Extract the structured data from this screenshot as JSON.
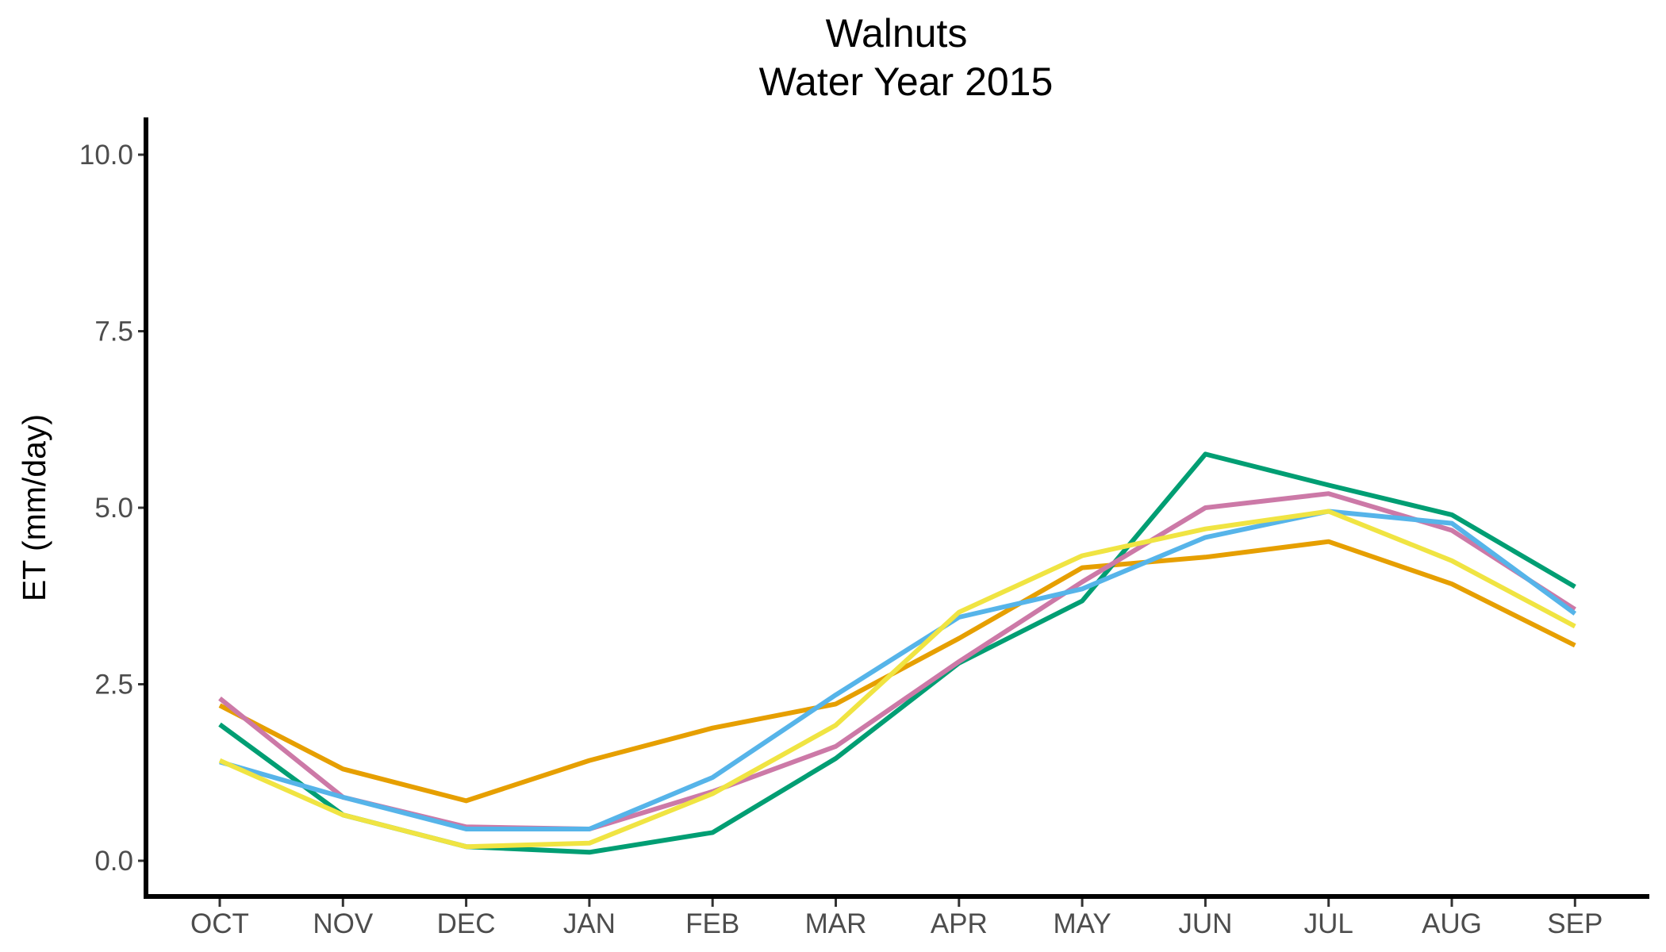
{
  "chart_data": {
    "type": "line",
    "title_lines": [
      "Walnuts",
      "Water Year 2015"
    ],
    "xlabel": "",
    "ylabel": "ET (mm/day)",
    "categories": [
      "OCT",
      "NOV",
      "DEC",
      "JAN",
      "FEB",
      "MAR",
      "APR",
      "MAY",
      "JUN",
      "JUL",
      "AUG",
      "SEP"
    ],
    "ylim": [
      -0.5,
      10.5
    ],
    "yticks": [
      0.0,
      2.5,
      5.0,
      7.5,
      10.0
    ],
    "ytick_labels": [
      "0.0",
      "2.5",
      "5.0",
      "7.5",
      "10.0"
    ],
    "grid": false,
    "legend": "none",
    "series": [
      {
        "color": "#E69F00",
        "values": [
          2.2,
          1.3,
          0.85,
          1.42,
          1.88,
          2.22,
          3.15,
          4.15,
          4.3,
          4.52,
          3.92,
          3.05
        ]
      },
      {
        "color": "#009E73",
        "values": [
          1.93,
          0.65,
          0.2,
          0.12,
          0.4,
          1.45,
          2.8,
          3.68,
          5.76,
          5.32,
          4.9,
          3.88
        ]
      },
      {
        "color": "#CC79A7",
        "values": [
          2.3,
          0.9,
          0.48,
          0.45,
          0.98,
          1.62,
          2.82,
          3.95,
          5.0,
          5.2,
          4.68,
          3.56
        ]
      },
      {
        "color": "#56B4E9",
        "values": [
          1.4,
          0.9,
          0.45,
          0.45,
          1.18,
          2.35,
          3.45,
          3.85,
          4.58,
          4.95,
          4.78,
          3.5
        ]
      },
      {
        "color": "#F0E442",
        "values": [
          1.42,
          0.65,
          0.2,
          0.25,
          0.95,
          1.92,
          3.52,
          4.32,
          4.7,
          4.95,
          4.25,
          3.32
        ]
      }
    ]
  }
}
